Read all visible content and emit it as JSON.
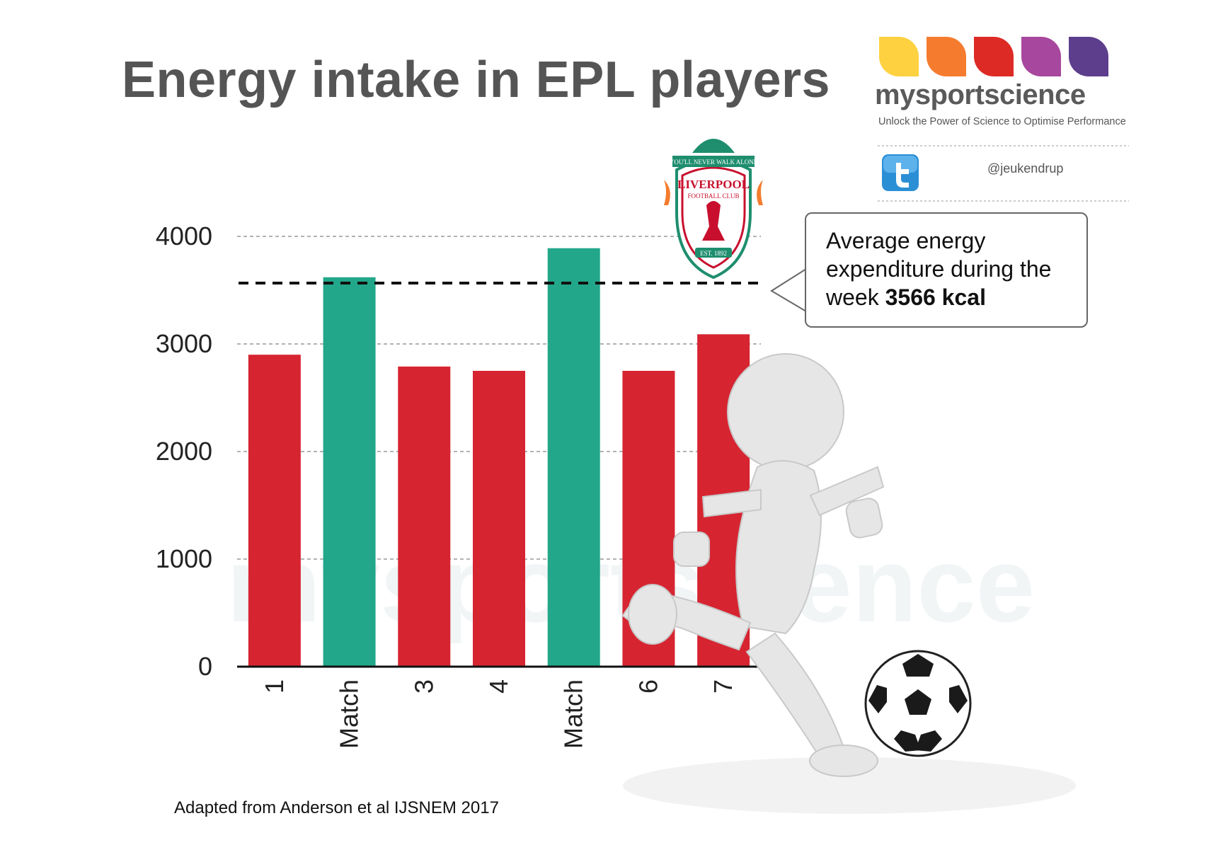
{
  "title": "Energy intake in EPL players",
  "brand": {
    "name": "mysportscience",
    "tagline": "Unlock the Power of Science to Optimise Performance",
    "twitter_handle": "@jeukendrup",
    "drop_colors": [
      "#FDD13F",
      "#F57C2E",
      "#DD2A25",
      "#A7479E",
      "#5D3E8C"
    ]
  },
  "crest": {
    "motto": "YOU'LL NEVER WALK ALONE",
    "name": "LIVERPOOL",
    "subtitle": "FOOTBALL CLUB",
    "est": "EST. 1892"
  },
  "callout": {
    "text_before": "Average energy expenditure during the week ",
    "text_bold": "3566 kcal"
  },
  "source": "Adapted from Anderson et al IJSNEM 2017",
  "watermark": "mysportscience",
  "colors": {
    "training": "#D62531",
    "match": "#22A78A",
    "text": "#333333"
  },
  "chart_data": {
    "type": "bar",
    "title": "Energy intake in EPL players",
    "xlabel": "",
    "ylabel": "",
    "categories": [
      "1",
      "Match",
      "3",
      "4",
      "Match",
      "6",
      "7"
    ],
    "values": [
      2900,
      3620,
      2790,
      2750,
      3890,
      2750,
      3090
    ],
    "bar_types": [
      "training",
      "match",
      "training",
      "training",
      "match",
      "training",
      "training"
    ],
    "ylim": [
      0,
      4000
    ],
    "yticks": [
      0,
      1000,
      2000,
      3000,
      4000
    ],
    "grid": true,
    "reference_line": {
      "value": 3566,
      "style": "dashed"
    }
  }
}
